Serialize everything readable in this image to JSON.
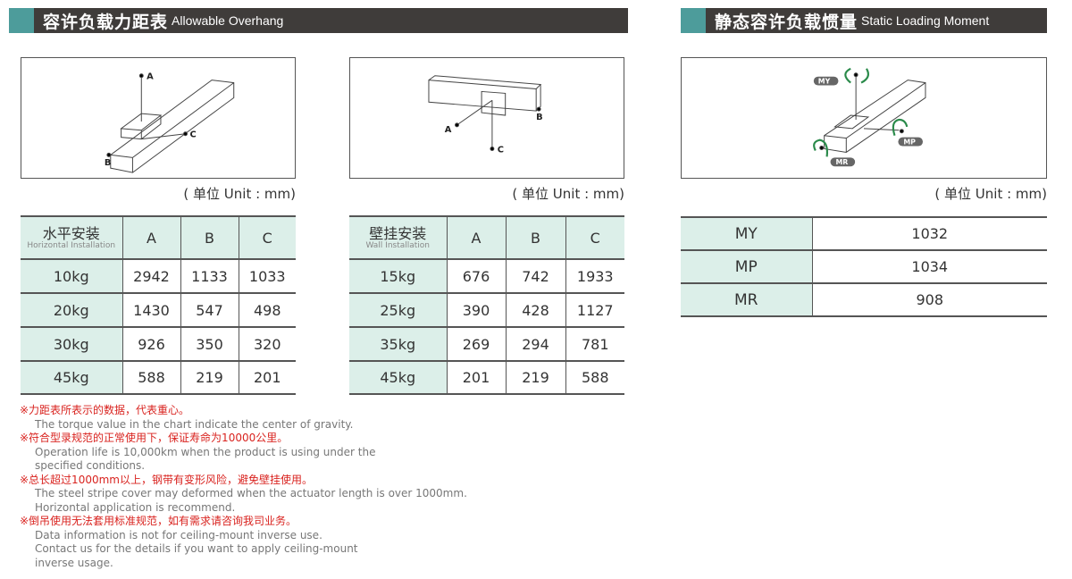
{
  "overhang": {
    "title_zh": "容许负载力距表",
    "title_en": "Allowable Overhang",
    "unit": "( 单位 Unit : mm)",
    "horizontal": {
      "header_zh": "水平安装",
      "header_en": "Horizontal Installation",
      "columns": [
        "A",
        "B",
        "C"
      ],
      "rows": [
        {
          "load": "10kg",
          "values": [
            "2942",
            "1133",
            "1033"
          ]
        },
        {
          "load": "20kg",
          "values": [
            "1430",
            "547",
            "498"
          ]
        },
        {
          "load": "30kg",
          "values": [
            "926",
            "350",
            "320"
          ]
        },
        {
          "load": "45kg",
          "values": [
            "588",
            "219",
            "201"
          ]
        }
      ]
    },
    "wall": {
      "header_zh": "壁挂安装",
      "header_en": "Wall Installation",
      "columns": [
        "A",
        "B",
        "C"
      ],
      "rows": [
        {
          "load": "15kg",
          "values": [
            "676",
            "742",
            "1933"
          ]
        },
        {
          "load": "25kg",
          "values": [
            "390",
            "428",
            "1127"
          ]
        },
        {
          "load": "35kg",
          "values": [
            "269",
            "294",
            "781"
          ]
        },
        {
          "load": "45kg",
          "values": [
            "201",
            "219",
            "588"
          ]
        }
      ]
    },
    "diagram_labels": [
      "A",
      "B",
      "C"
    ]
  },
  "moment": {
    "title_zh": "静态容许负载惯量",
    "title_en": "Static Loading Moment",
    "unit": "( 单位 Unit : mm)",
    "rows": [
      {
        "label": "MY",
        "value": "1032"
      },
      {
        "label": "MP",
        "value": "1034"
      },
      {
        "label": "MR",
        "value": "908"
      }
    ]
  },
  "notes": [
    {
      "zh": "※力距表所表示的数据，代表重心。",
      "en": [
        "The torque value in the chart indicate the center of gravity."
      ]
    },
    {
      "zh": "※符合型录规范的正常使用下，保证寿命为10000公里。",
      "en": [
        "Operation life is 10,000km when the product is using under the",
        "specified conditions."
      ]
    },
    {
      "zh": "※总长超过1000mm以上，钢带有变形风险，避免壁挂使用。",
      "en": [
        "The steel stripe cover may deformed when the actuator length is over 1000mm.",
        "Horizontal application is recommend."
      ]
    },
    {
      "zh": "※倒吊使用无法套用标准规范，如有需求请咨询我司业务。",
      "en": [
        "Data information is not for ceiling-mount inverse use.",
        "Contact us for the details if you want to apply ceiling-mount",
        "inverse usage."
      ]
    }
  ],
  "colors": {
    "header_bar": "#3f3c3a",
    "accent": "#4d9c9b",
    "table_header": "#dcefe9",
    "note_red": "#d9231f",
    "arrow_green": "#2a8a4a"
  }
}
